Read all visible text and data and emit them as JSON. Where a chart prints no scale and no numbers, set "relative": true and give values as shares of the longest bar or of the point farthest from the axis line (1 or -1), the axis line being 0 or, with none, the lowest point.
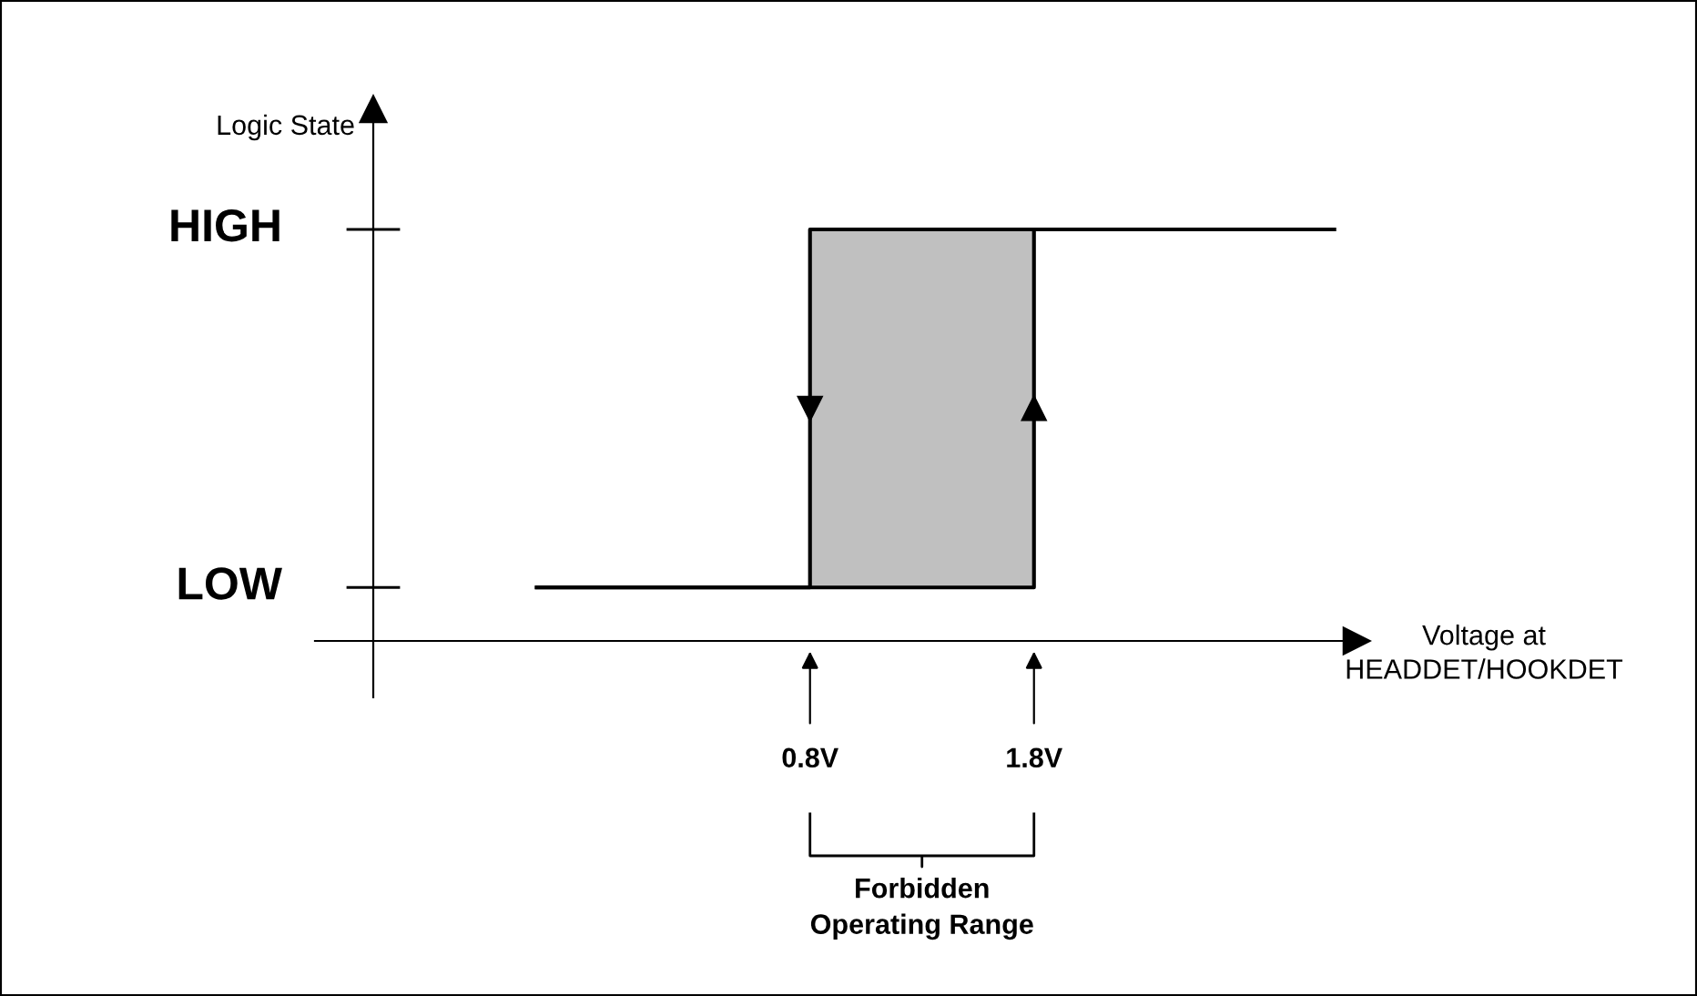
{
  "chart_data": {
    "type": "line",
    "relative": true,
    "ylabel": "Logic State",
    "xlabel": "Voltage at\nHEADDET/HOOKDET",
    "xlim": [
      -1.15,
      3.24
    ],
    "xticks": [
      {
        "value": 0.8,
        "label": "0.8V"
      },
      {
        "value": 1.8,
        "label": "1.8V"
      }
    ],
    "annotations": [
      "HIGH",
      "LOW",
      "Forbidden\nOperating Range"
    ],
    "series": [
      {
        "color": "#000000",
        "x": [
          -0.42,
          1.8,
          1.8,
          3.14
        ],
        "values": [
          0.13,
          0.13,
          1,
          1
        ]
      },
      {
        "color": "#000000",
        "x": [
          3.14,
          0.8,
          0.8,
          -0.42
        ],
        "values": [
          1,
          1,
          0.13,
          0.13
        ]
      }
    ],
    "bands": [
      {
        "axis": "x",
        "from": 0.8,
        "to": 1.8,
        "color": "#c0c0c0"
      }
    ],
    "grid": false,
    "legend": false,
    "marker": "none",
    "line_style": "solid"
  }
}
